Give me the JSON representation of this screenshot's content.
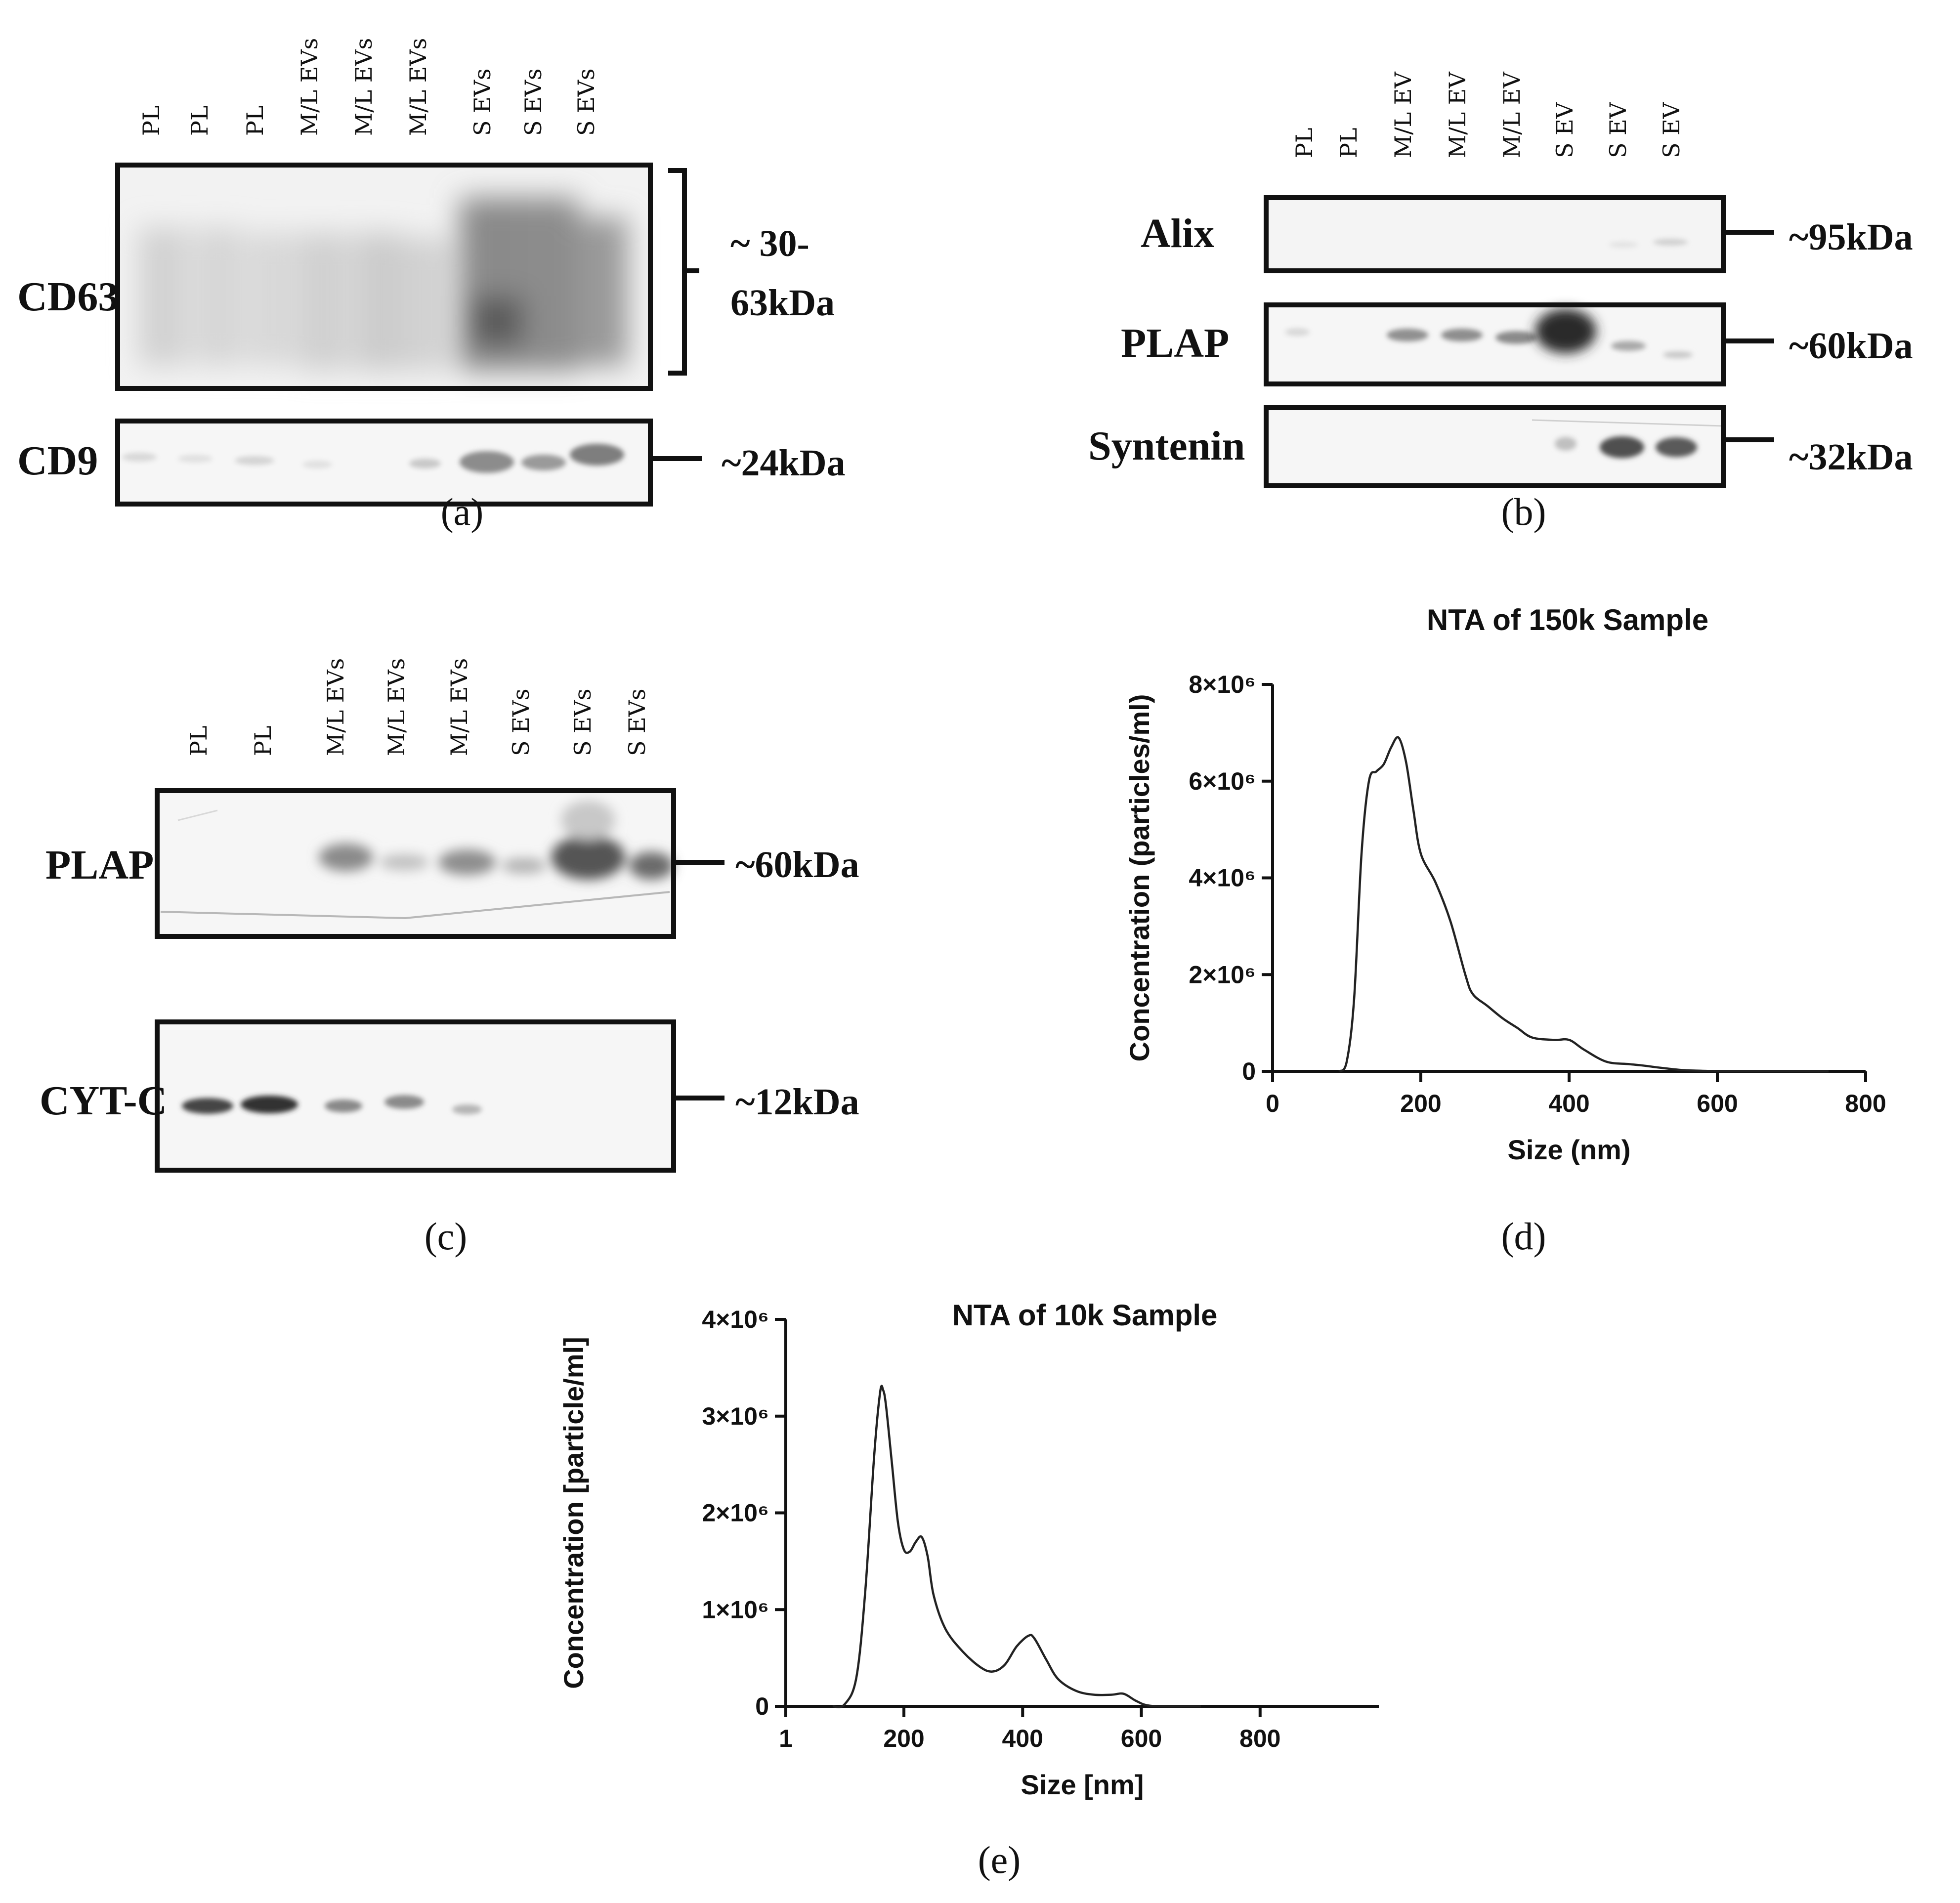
{
  "panel_a": {
    "lanes": [
      "PL",
      "PL",
      "PL",
      "M/L EVs",
      "M/L EVs",
      "M/L EVs",
      "S EVs",
      "S EVs",
      "S EVs"
    ],
    "blots": [
      {
        "label": "CD63",
        "mw_line1": "~ 30-",
        "mw_line2": "63kDa"
      },
      {
        "label": "CD9",
        "mw": "~24kDa"
      }
    ],
    "caption": "(a)"
  },
  "panel_b": {
    "lanes": [
      "PL",
      "PL",
      "M/L EV",
      "M/L EV",
      "M/L EV",
      "S EV",
      "S EV",
      "S EV"
    ],
    "blots": [
      {
        "label": "Alix",
        "mw": "~95kDa"
      },
      {
        "label": "PLAP",
        "mw": "~60kDa"
      },
      {
        "label": "Syntenin",
        "mw": "~32kDa"
      }
    ],
    "caption": "(b)"
  },
  "panel_c": {
    "lanes": [
      "PL",
      "PL",
      "M/L EVs",
      "M/L EVs",
      "M/L EVs",
      "S EVs",
      "S EVs",
      "S EVs"
    ],
    "blots": [
      {
        "label": "PLAP",
        "mw": "~60kDa"
      },
      {
        "label": "CYT-C",
        "mw": "~12kDa"
      }
    ],
    "caption": "(c)"
  },
  "caption_d": "(d)",
  "caption_e": "(e)",
  "chart_data": [
    {
      "type": "line",
      "title": "NTA of 150k Sample",
      "xlabel": "Size (nm)",
      "ylabel": "Concentration (particles/ml)",
      "xlim": [
        0,
        800
      ],
      "ylim": [
        0,
        8000000
      ],
      "xticks": [
        0,
        200,
        400,
        600,
        800
      ],
      "xtick_labels": [
        "0",
        "200",
        "400",
        "600",
        "800"
      ],
      "yticks": [
        0,
        2000000,
        4000000,
        6000000,
        8000000
      ],
      "ytick_labels": [
        "0",
        "2×10⁶",
        "4×10⁶",
        "6×10⁶",
        "8×10⁶"
      ],
      "x": [
        90,
        100,
        110,
        120,
        130,
        140,
        150,
        160,
        170,
        180,
        190,
        200,
        220,
        240,
        260,
        270,
        290,
        310,
        330,
        350,
        380,
        400,
        420,
        450,
        480,
        500,
        520,
        550,
        580,
        600,
        650,
        700,
        750
      ],
      "y": [
        0,
        200000,
        1500000,
        4500000,
        6000000,
        6200000,
        6350000,
        6700000,
        6900000,
        6400000,
        5400000,
        4500000,
        3900000,
        3100000,
        2000000,
        1600000,
        1350000,
        1100000,
        900000,
        700000,
        650000,
        650000,
        450000,
        200000,
        150000,
        120000,
        80000,
        30000,
        10000,
        5000,
        2000,
        1000,
        0
      ]
    },
    {
      "type": "line",
      "title": "NTA of 10k Sample",
      "xlabel": "Size [nm]",
      "ylabel": "Concentration [particle/ml]",
      "xlim": [
        1,
        1000
      ],
      "ylim": [
        0,
        4000000
      ],
      "xticks": [
        1,
        200,
        400,
        600,
        800
      ],
      "xtick_labels": [
        "1",
        "200",
        "400",
        "600",
        "800"
      ],
      "yticks": [
        0,
        1000000,
        2000000,
        3000000,
        4000000
      ],
      "ytick_labels": [
        "0",
        "1×10⁶",
        "2×10⁶",
        "3×10⁶",
        "4×10⁶"
      ],
      "x": [
        80,
        100,
        120,
        135,
        150,
        160,
        165,
        170,
        180,
        190,
        200,
        210,
        220,
        230,
        240,
        250,
        270,
        300,
        330,
        350,
        370,
        390,
        410,
        420,
        440,
        460,
        490,
        520,
        550,
        570,
        590,
        610,
        640,
        700
      ],
      "y": [
        0,
        20000,
        300000,
        1200000,
        2600000,
        3250000,
        3270000,
        3100000,
        2500000,
        1900000,
        1620000,
        1600000,
        1700000,
        1750000,
        1550000,
        1150000,
        800000,
        560000,
        400000,
        360000,
        430000,
        620000,
        730000,
        700000,
        480000,
        280000,
        160000,
        120000,
        120000,
        130000,
        60000,
        10000,
        0,
        0
      ]
    }
  ]
}
